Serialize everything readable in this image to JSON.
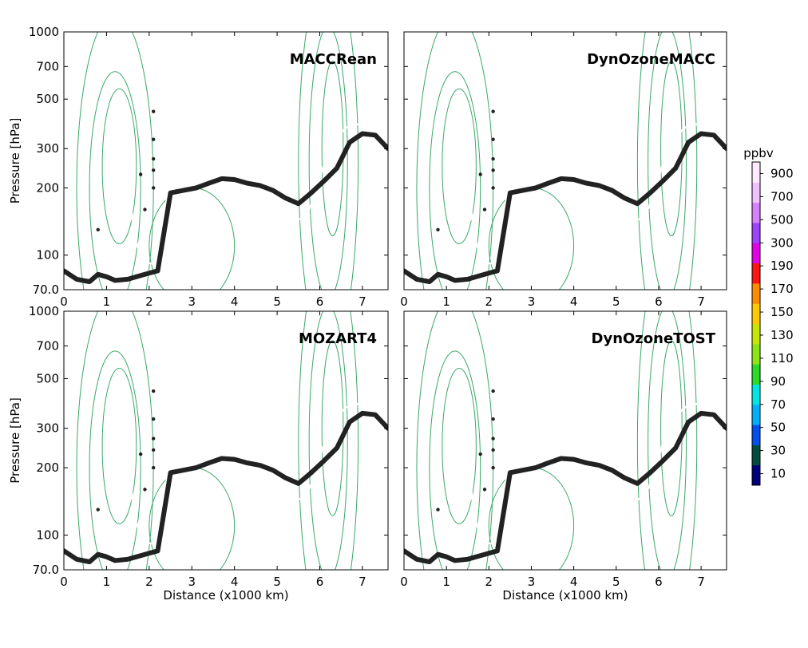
{
  "chart_data": {
    "type": "heatmap",
    "panels": [
      {
        "title": "MACCRean",
        "regime": "maccrean"
      },
      {
        "title": "DynOzoneMACC",
        "regime": "dynmacc"
      },
      {
        "title": "MOZART4",
        "regime": "mozart"
      },
      {
        "title": "DynOzoneTOST",
        "regime": "dyntost"
      }
    ],
    "xlabel": "Distance (x1000 km)",
    "ylabel": "Pressure [hPa]",
    "x_ticks": [
      "0",
      "1",
      "2",
      "3",
      "4",
      "5",
      "6",
      "7"
    ],
    "xlim": [
      0,
      7.6
    ],
    "y_scale": "log",
    "y_ticks": [
      {
        "value": 70,
        "label": "70.0"
      },
      {
        "value": 100,
        "label": "100"
      },
      {
        "value": 200,
        "label": "200"
      },
      {
        "value": 300,
        "label": "300"
      },
      {
        "value": 500,
        "label": "500"
      },
      {
        "value": 700,
        "label": "700"
      },
      {
        "value": 1000,
        "label": "1000"
      }
    ],
    "ylim": [
      1000,
      70
    ],
    "colorbar": {
      "label": "ppbv",
      "levels": [
        10,
        30,
        50,
        70,
        90,
        110,
        130,
        150,
        170,
        190,
        300,
        500,
        700,
        900
      ],
      "colors": [
        "#00007f",
        "#004c3f",
        "#0050f0",
        "#00b0ff",
        "#00e6e6",
        "#28dc28",
        "#8ce614",
        "#c8e600",
        "#ffc800",
        "#ff8c00",
        "#ff1414",
        "#e600e6",
        "#a040ff",
        "#d880ff",
        "#f0c0ff",
        "#ffeaff"
      ]
    },
    "tropopause_line": {
      "color": "#222222",
      "points": [
        [
          0.0,
          85
        ],
        [
          0.3,
          78
        ],
        [
          0.6,
          76
        ],
        [
          0.8,
          82
        ],
        [
          1.0,
          80
        ],
        [
          1.2,
          77
        ],
        [
          1.5,
          78
        ],
        [
          1.8,
          81
        ],
        [
          2.0,
          83
        ],
        [
          2.2,
          85
        ],
        [
          2.5,
          190
        ],
        [
          2.8,
          195
        ],
        [
          3.1,
          200
        ],
        [
          3.4,
          210
        ],
        [
          3.7,
          220
        ],
        [
          4.0,
          218
        ],
        [
          4.3,
          210
        ],
        [
          4.6,
          205
        ],
        [
          4.9,
          195
        ],
        [
          5.2,
          180
        ],
        [
          5.5,
          170
        ],
        [
          5.8,
          190
        ],
        [
          6.1,
          215
        ],
        [
          6.4,
          245
        ],
        [
          6.7,
          320
        ],
        [
          7.0,
          350
        ],
        [
          7.3,
          345
        ],
        [
          7.6,
          300
        ]
      ]
    }
  }
}
